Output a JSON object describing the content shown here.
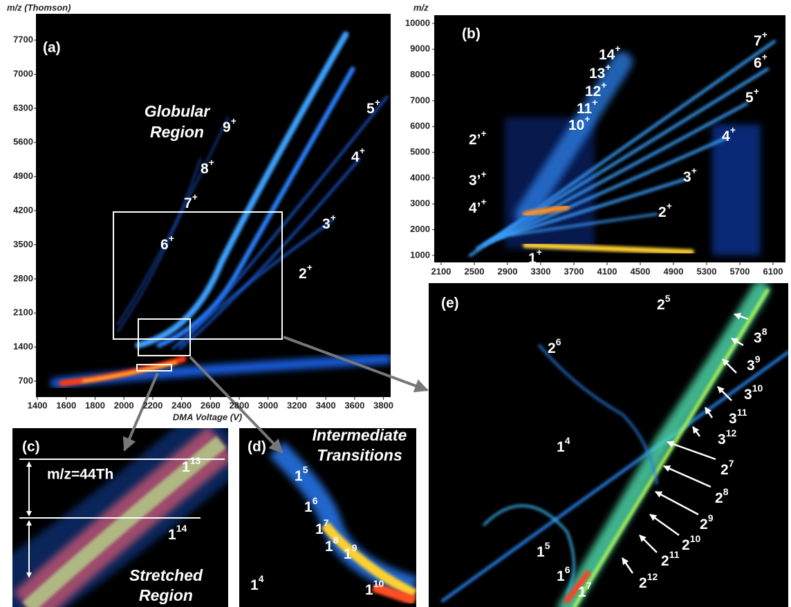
{
  "panels": {
    "a": {
      "label": "(a)",
      "y_title": "m/z (Thomson)",
      "x_title": "DMA Voltage (V)",
      "xlim": [
        1390,
        3850
      ],
      "xticks": [
        1400,
        1600,
        1800,
        2000,
        2200,
        2400,
        2600,
        2800,
        3000,
        3200,
        3400,
        3600,
        3800
      ],
      "ylim": [
        374,
        8240
      ],
      "yticks": [
        700,
        1400,
        2100,
        2800,
        3500,
        4200,
        4900,
        5600,
        6300,
        7000,
        7700
      ],
      "region": [
        "Globular",
        "Region"
      ],
      "charges": [
        {
          "base": "9",
          "sup": "+"
        },
        {
          "base": "8",
          "sup": "+"
        },
        {
          "base": "7",
          "sup": "+"
        },
        {
          "base": "6",
          "sup": "+"
        },
        {
          "base": "5",
          "sup": "+"
        },
        {
          "base": "4",
          "sup": "+"
        },
        {
          "base": "3",
          "sup": "+"
        },
        {
          "base": "2",
          "sup": "+"
        }
      ]
    },
    "b": {
      "label": "(b)",
      "y_title": "m/z",
      "xlim": [
        2017,
        6250
      ],
      "xticks": [
        2100,
        2500,
        2900,
        3300,
        3700,
        4100,
        4500,
        4900,
        5300,
        5700,
        6100
      ],
      "ylim": [
        730,
        10320
      ],
      "yticks": [
        1000,
        2000,
        3000,
        4000,
        5000,
        6000,
        7000,
        8000,
        9000,
        10000
      ],
      "charges": [
        {
          "base": "14",
          "sup": "+"
        },
        {
          "base": "13",
          "sup": "+"
        },
        {
          "base": "12",
          "sup": "+"
        },
        {
          "base": "11",
          "sup": "+"
        },
        {
          "base": "10",
          "sup": "+"
        },
        {
          "base": "7",
          "sup": "+"
        },
        {
          "base": "6",
          "sup": "+"
        },
        {
          "base": "5",
          "sup": "+"
        },
        {
          "base": "4",
          "sup": "+"
        },
        {
          "base": "3",
          "sup": "+"
        },
        {
          "base": "2",
          "sup": "+"
        },
        {
          "base": "1",
          "sup": "+"
        },
        {
          "base": "2’",
          "sup": "+"
        },
        {
          "base": "3’",
          "sup": "+"
        },
        {
          "base": "4’",
          "sup": "+"
        }
      ]
    },
    "c": {
      "label": "(c)",
      "note": "m/z=44Th",
      "region": [
        "Stretched",
        "Region"
      ],
      "charges": [
        {
          "base": "1",
          "sup": "13"
        },
        {
          "base": "1",
          "sup": "14"
        }
      ]
    },
    "d": {
      "label": "(d)",
      "region": [
        "Intermediate",
        "Transitions"
      ],
      "charges": [
        {
          "base": "1",
          "sup": "5"
        },
        {
          "base": "1",
          "sup": "6"
        },
        {
          "base": "1",
          "sup": "7"
        },
        {
          "base": "1",
          "sup": "8"
        },
        {
          "base": "1",
          "sup": "9"
        },
        {
          "base": "1",
          "sup": "10"
        },
        {
          "base": "1",
          "sup": "4"
        }
      ]
    },
    "e": {
      "label": "(e)",
      "charges": [
        {
          "base": "2",
          "sup": "5"
        },
        {
          "base": "2",
          "sup": "6"
        },
        {
          "base": "3",
          "sup": "8"
        },
        {
          "base": "3",
          "sup": "9"
        },
        {
          "base": "3",
          "sup": "10"
        },
        {
          "base": "3",
          "sup": "11"
        },
        {
          "base": "3",
          "sup": "12"
        },
        {
          "base": "2",
          "sup": "7"
        },
        {
          "base": "2",
          "sup": "8"
        },
        {
          "base": "2",
          "sup": "9"
        },
        {
          "base": "2",
          "sup": "10"
        },
        {
          "base": "2",
          "sup": "11"
        },
        {
          "base": "2",
          "sup": "12"
        },
        {
          "base": "1",
          "sup": "4"
        },
        {
          "base": "1",
          "sup": "5"
        },
        {
          "base": "1",
          "sup": "6"
        },
        {
          "base": "1",
          "sup": "7"
        }
      ]
    }
  }
}
